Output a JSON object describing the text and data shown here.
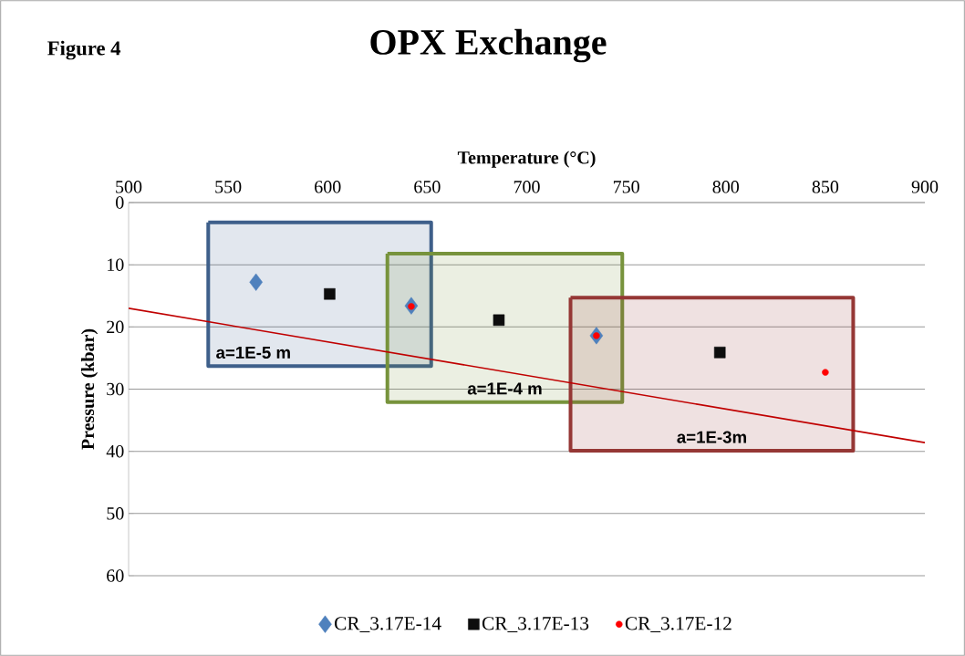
{
  "chart_data": {
    "type": "scatter",
    "title": "OPX Exchange",
    "xlabel": "Temperature (°C)",
    "ylabel": "Pressure (kbar)",
    "xlim": [
      500,
      900
    ],
    "xticks": [
      500,
      550,
      600,
      650,
      700,
      750,
      800,
      850,
      900
    ],
    "ylim": [
      60,
      0
    ],
    "yticks": [
      0,
      10,
      20,
      30,
      40,
      50,
      60
    ],
    "grid": "y",
    "legend": "bottom",
    "annotations": [
      "Figure 4",
      "a=1E-5 m",
      "a=1E-4 m",
      "a=1E-3m"
    ],
    "series": [
      {
        "type": "area",
        "color": "#3e5f8a",
        "x": [
          540,
          652,
          652,
          540,
          540
        ],
        "values": [
          3.2,
          3.2,
          26.3,
          26.3,
          3.2
        ]
      },
      {
        "type": "area",
        "color": "#77933c",
        "x": [
          630,
          748,
          748,
          630,
          630
        ],
        "values": [
          8.2,
          8.2,
          32.1,
          32.1,
          8.2
        ]
      },
      {
        "type": "area",
        "color": "#953735",
        "x": [
          722,
          864,
          864,
          722,
          722
        ],
        "values": [
          15.3,
          15.3,
          39.9,
          39.9,
          15.3
        ]
      },
      {
        "type": "line",
        "color": "#c00000",
        "x": [
          500,
          900
        ],
        "values": [
          17.0,
          38.6
        ]
      },
      {
        "name": "CR_3.17E-14",
        "color": "#4f81bd",
        "marker": "diamond",
        "x": [
          564,
          642,
          735
        ],
        "values": [
          12.8,
          16.6,
          21.4
        ]
      },
      {
        "name": "CR_3.17E-13",
        "color": "#0d0d0d",
        "marker": "square",
        "x": [
          601,
          686,
          797
        ],
        "values": [
          14.7,
          18.9,
          24.1
        ]
      },
      {
        "name": "CR_3.17E-12",
        "color": "#ff0000",
        "marker": "circle",
        "x": [
          642,
          735,
          850
        ],
        "values": [
          16.7,
          21.4,
          27.3
        ]
      }
    ]
  }
}
